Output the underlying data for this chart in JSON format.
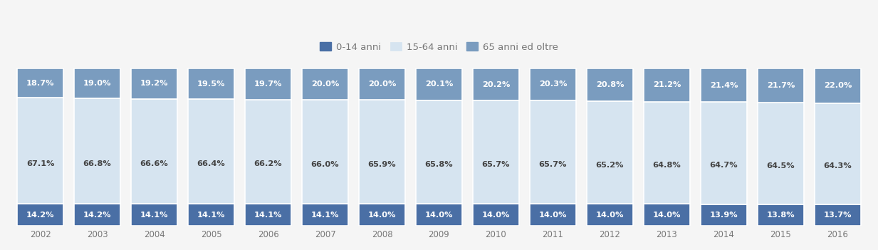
{
  "years": [
    2002,
    2003,
    2004,
    2005,
    2006,
    2007,
    2008,
    2009,
    2010,
    2011,
    2012,
    2013,
    2014,
    2015,
    2016
  ],
  "bottom_0_14": [
    14.2,
    14.2,
    14.1,
    14.1,
    14.1,
    14.1,
    14.0,
    14.0,
    14.0,
    14.0,
    14.0,
    14.0,
    13.9,
    13.8,
    13.7
  ],
  "middle_15_64": [
    67.1,
    66.8,
    66.6,
    66.4,
    66.2,
    66.0,
    65.9,
    65.8,
    65.7,
    65.7,
    65.2,
    64.8,
    64.7,
    64.5,
    64.3
  ],
  "top_65plus": [
    18.7,
    19.0,
    19.2,
    19.5,
    19.7,
    20.0,
    20.0,
    20.1,
    20.2,
    20.3,
    20.8,
    21.2,
    21.4,
    21.7,
    22.0
  ],
  "color_0_14": "#4a6fa5",
  "color_15_64": "#d6e4f0",
  "color_65plus": "#7a9cbf",
  "label_0_14": "0-14 anni",
  "label_15_64": "15-64 anni",
  "label_65plus": "65 anni ed oltre",
  "bottom_label_color": "white",
  "middle_label_color": "#444444",
  "top_label_color": "white",
  "bar_edge_color": "white",
  "bar_edge_width": 1.2,
  "legend_fontsize": 9.5,
  "tick_fontsize": 8.5,
  "value_fontsize": 8.2,
  "fig_bg_color": "#f5f5f5",
  "figsize": [
    12.33,
    3.51
  ],
  "dpi": 100
}
